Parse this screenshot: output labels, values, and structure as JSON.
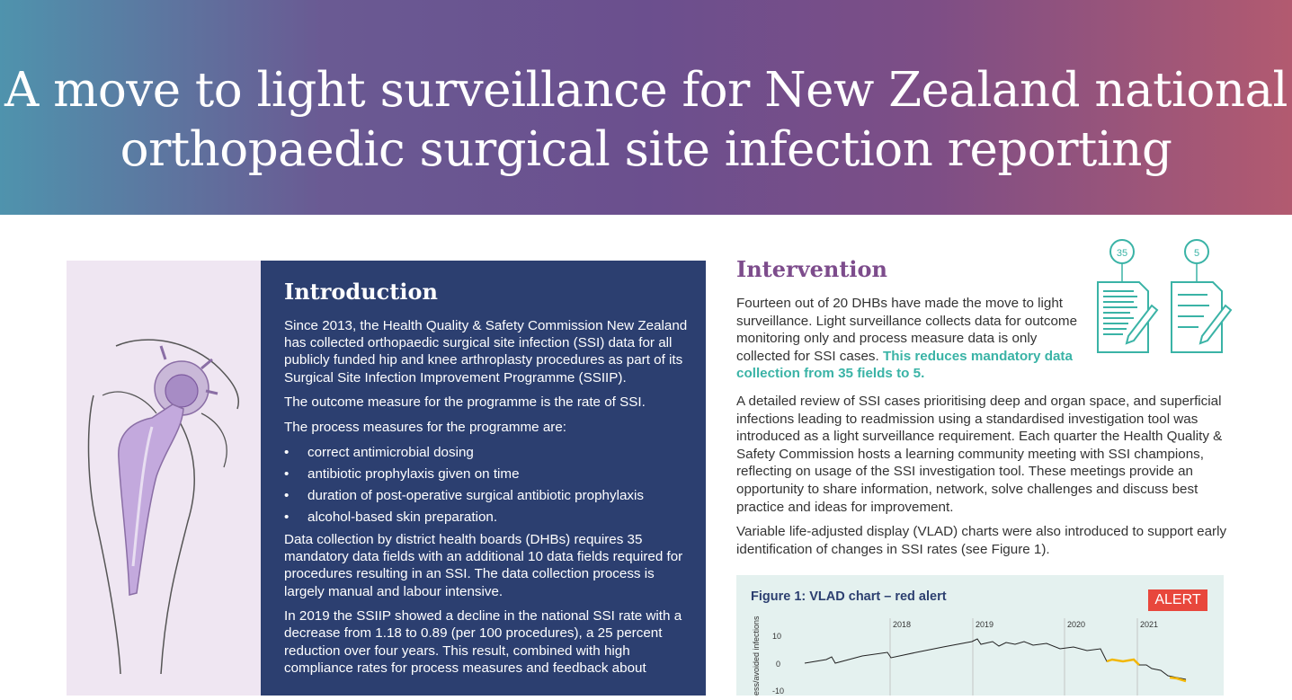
{
  "header": {
    "title_line1": "A move to light surveillance for New Zealand national",
    "title_line2": "orthopaedic surgical site infection reporting"
  },
  "introduction": {
    "heading": "Introduction",
    "p1": "Since 2013, the Health Quality & Safety Commission New Zealand has collected orthopaedic surgical site infection (SSI) data for all publicly funded hip and knee arthroplasty procedures as part of its Surgical Site Infection Improvement Programme (SSIIP).",
    "p2": "The outcome measure for the programme is the rate of SSI.",
    "p3": "The process measures for the programme are:",
    "bullet_symbol": "•",
    "bullets": [
      "correct antimicrobial dosing",
      "antibiotic prophylaxis given on time",
      "duration of post-operative surgical antibiotic prophylaxis",
      "alcohol-based skin preparation."
    ],
    "p4": "Data collection by district health boards (DHBs) requires 35 mandatory data fields with an additional 10 data fields required for procedures resulting in an SSI. The data collection process is largely manual and labour intensive.",
    "p5": "In 2019 the SSIIP showed a decline in the national SSI rate with a decrease from 1.18 to 0.89 (per 100 procedures), a 25 percent reduction over four years. This result, combined with high compliance rates for process measures and feedback about"
  },
  "intervention": {
    "heading": "Intervention",
    "p1_text": "Fourteen out of 20 DHBs have made the move to light surveillance. Light surveillance collects data for outcome monitoring only and process measure data is only collected for SSI cases.",
    "p1_highlight": "This reduces mandatory data collection from 35 fields to 5.",
    "p2": "A detailed review of SSI cases prioritising deep and organ space, and superficial infections leading to readmission using a standardised investigation tool was introduced as a light surveillance requirement. Each quarter the Health Quality & Safety Commission hosts a learning community meeting with SSI champions, reflecting on usage of the SSI investigation tool. These meetings provide an opportunity to share information, network, solve challenges and discuss best practice and ideas for improvement.",
    "p3": "Variable life-adjusted display (VLAD) charts were also introduced to support early identification of changes in SSI rates (see Figure 1).",
    "icon_badges": [
      "35",
      "5"
    ]
  },
  "figure": {
    "label": "Figure 1:",
    "title": "VLAD chart – red alert",
    "alert": "ALERT",
    "year_labels": [
      "2018",
      "2019",
      "2020",
      "2021"
    ],
    "y_ticks": [
      "10",
      "0",
      "-10"
    ],
    "y_axis_label": "ess/avoided infections",
    "colors": {
      "line": "#222222",
      "highlight": "#f2b705",
      "alert": "#e8473c"
    }
  },
  "colors": {
    "navy_panel": "#2c3f70",
    "lilac_panel": "#efe6f2",
    "teal": "#3ab3a6",
    "purple_heading": "#7d4c8c"
  }
}
